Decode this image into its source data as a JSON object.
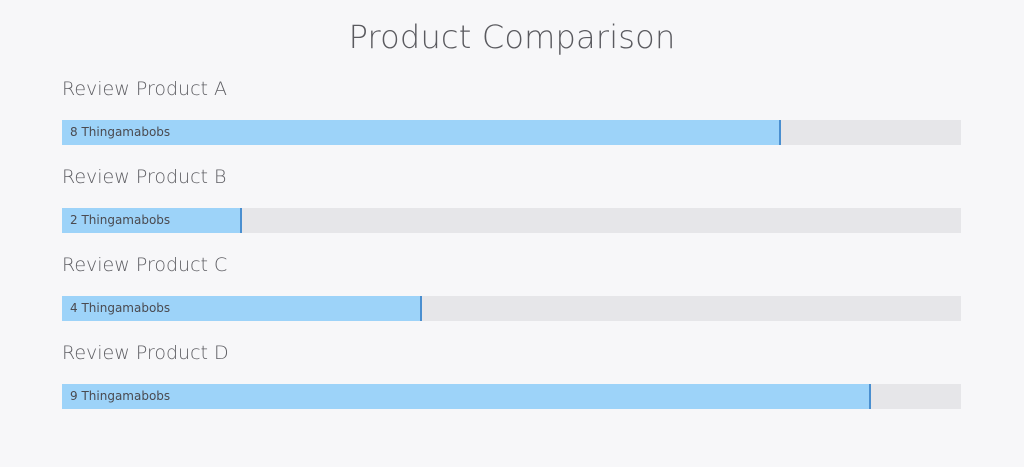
{
  "chart_data": {
    "type": "bar",
    "orientation": "horizontal",
    "title": "Product Comparison",
    "categories": [
      "Review Product A",
      "Review Product B",
      "Review Product C",
      "Review Product D"
    ],
    "values": [
      8,
      2,
      4,
      9
    ],
    "data_labels": [
      "8 Thingamabobs",
      "2 Thingamabobs",
      "4 Thingamabobs",
      "9 Thingamabobs"
    ],
    "xlim": [
      0,
      10
    ],
    "grid": false,
    "colors": {
      "fill": "#9dd3f9",
      "marker": "#4a8fd0",
      "track": "#e6e6e9"
    }
  }
}
